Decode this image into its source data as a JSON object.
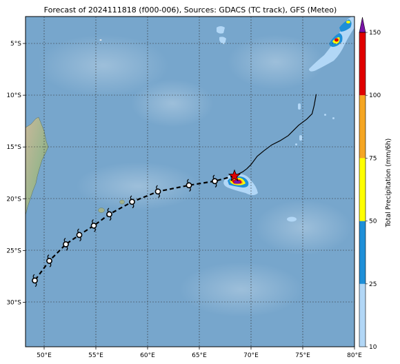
{
  "title": "Forecast of 2024111818 (f000-006), Sources: GDACS (TC track), GFS (Meteo)",
  "chart_data": {
    "type": "map",
    "xlim_deg_e": [
      48.2,
      80.0
    ],
    "ylim_deg_s": [
      34.3,
      2.4
    ],
    "x_ticks": [
      {
        "value": 50,
        "label": "50°E"
      },
      {
        "value": 55,
        "label": "55°E"
      },
      {
        "value": 60,
        "label": "60°E"
      },
      {
        "value": 65,
        "label": "65°E"
      },
      {
        "value": 70,
        "label": "70°E"
      },
      {
        "value": 75,
        "label": "75°E"
      },
      {
        "value": 80,
        "label": "80°E"
      }
    ],
    "y_ticks": [
      {
        "value": 5,
        "label": "5°S"
      },
      {
        "value": 10,
        "label": "10°S"
      },
      {
        "value": 15,
        "label": "15°S"
      },
      {
        "value": 20,
        "label": "20°S"
      },
      {
        "value": 25,
        "label": "25°S"
      },
      {
        "value": 30,
        "label": "30°S"
      }
    ],
    "grid": true,
    "past_track": [
      [
        76.3,
        9.9
      ],
      [
        76.1,
        11.0
      ],
      [
        75.9,
        11.8
      ],
      [
        75.4,
        12.3
      ],
      [
        74.6,
        12.9
      ],
      [
        73.6,
        13.9
      ],
      [
        72.8,
        14.4
      ],
      [
        72.0,
        14.8
      ],
      [
        71.2,
        15.4
      ],
      [
        70.6,
        15.9
      ],
      [
        70.0,
        16.7
      ],
      [
        69.6,
        17.1
      ],
      [
        69.2,
        17.4
      ],
      [
        68.6,
        17.7
      ],
      [
        68.4,
        17.8
      ]
    ],
    "current_position": [
      68.4,
      17.8
    ],
    "forecast_track": [
      [
        68.4,
        17.8
      ],
      [
        66.5,
        18.3
      ],
      [
        64.0,
        18.7
      ],
      [
        61.0,
        19.3
      ],
      [
        58.5,
        20.3
      ],
      [
        56.3,
        21.5
      ],
      [
        54.8,
        22.6
      ],
      [
        53.4,
        23.5
      ],
      [
        52.1,
        24.4
      ],
      [
        50.5,
        26.0
      ],
      [
        49.1,
        27.9
      ]
    ],
    "precip_cells": [
      {
        "lon": 68.3,
        "lat": 18.4,
        "max": 150
      },
      {
        "lon": 78.5,
        "lat": 4.7,
        "max": 100
      },
      {
        "lon": 77.0,
        "lat": 3.0,
        "max": 75
      }
    ],
    "colorbar": {
      "label": "Total Precipitation (mm/6h)",
      "levels": [
        10,
        25,
        50,
        75,
        100,
        150
      ],
      "colors": [
        "#b2d7f6",
        "#1e8fd8",
        "#ffff00",
        "#f5a623",
        "#e00000",
        "#7a13a8"
      ],
      "extend": "max"
    }
  }
}
